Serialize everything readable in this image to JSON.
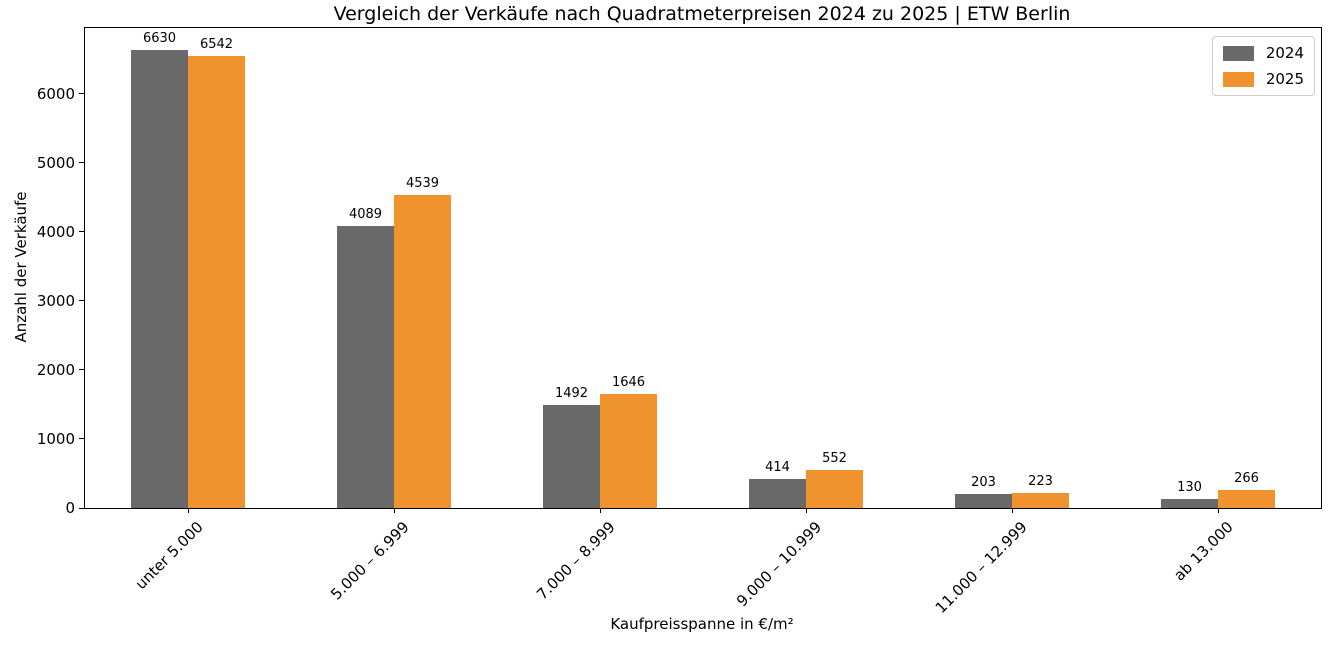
{
  "chart_data": {
    "type": "bar",
    "title": "Vergleich der Verkäufe nach Quadratmeterpreisen 2024 zu 2025 | ETW Berlin",
    "xlabel": "Kaufpreisspanne in €/m²",
    "ylabel": "Anzahl der Verkäufe",
    "categories": [
      "unter 5.000",
      "5.000 – 6.999",
      "7.000 – 8.999",
      "9.000 – 10.999",
      "11.000 – 12.999",
      "ab 13.000"
    ],
    "series": [
      {
        "name": "2024",
        "color": "#696969",
        "values": [
          6630,
          4089,
          1492,
          414,
          203,
          130
        ]
      },
      {
        "name": "2025",
        "color": "#f0922e",
        "values": [
          6542,
          4539,
          1646,
          552,
          223,
          266
        ]
      }
    ],
    "ylim": [
      0,
      6950
    ],
    "yticks": [
      0,
      1000,
      2000,
      3000,
      4000,
      5000,
      6000
    ],
    "legend_position": "upper right",
    "grid": false,
    "value_labels": true,
    "background_color": "#ffffff",
    "spine_color": "#000000"
  }
}
